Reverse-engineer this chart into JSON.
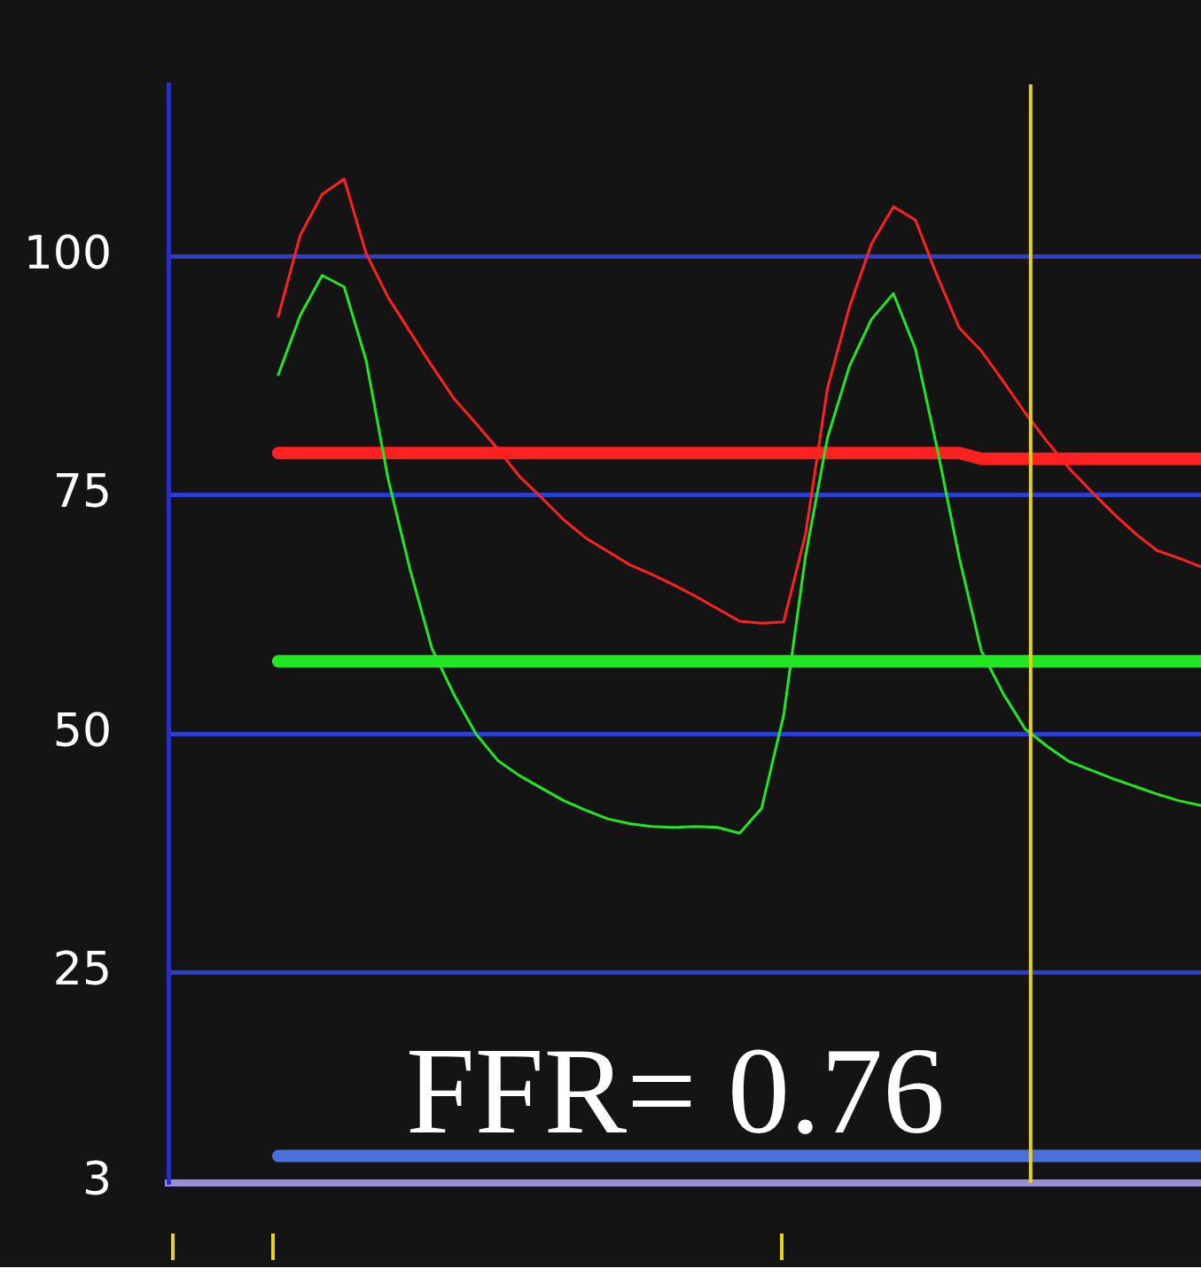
{
  "chart_data": {
    "type": "line",
    "categories": [
      null,
      null,
      null,
      null,
      null,
      null,
      null,
      null,
      null,
      null,
      null,
      null,
      null,
      null,
      null,
      null,
      null,
      null,
      null,
      null,
      null,
      null,
      null,
      null,
      null,
      null,
      null,
      null,
      null,
      null,
      null,
      null,
      null,
      null,
      null,
      null,
      null,
      null,
      null,
      null,
      null,
      null,
      null,
      null,
      null,
      null,
      null,
      null
    ],
    "ylim": [
      3,
      118
    ],
    "yticks": [
      3,
      25,
      50,
      75,
      100
    ],
    "grid": "y",
    "tick_labels": "y",
    "legend": false,
    "marker": "none",
    "annotations": [
      "FFR= 0.76"
    ],
    "ref_lines": [
      {
        "axis": "x",
        "color": "#e6d21e"
      }
    ],
    "series": [
      {
        "color": "#ff2020",
        "values": [
          null,
          null,
          null,
          null,
          null,
          93.7,
          102.2,
          106.5,
          108.1,
          100.3,
          95.7,
          92.1,
          88.5,
          85.1,
          82.5,
          79.8,
          76.9,
          74.7,
          72.4,
          70.5,
          69.1,
          67.7,
          66.7,
          65.6,
          64.4,
          63.1,
          61.8,
          61.6,
          61.7,
          70.9,
          86.2,
          94.7,
          101.3,
          105.2,
          103.8,
          97.9,
          92.5,
          90.1,
          86.9,
          83.6,
          80.6,
          77.8,
          75.4,
          73.1,
          71.0,
          69.2,
          68.4,
          67.5
        ]
      },
      {
        "color": "#22e622",
        "values": [
          null,
          null,
          null,
          null,
          null,
          87.6,
          93.8,
          98.0,
          96.8,
          89.1,
          76.7,
          67.2,
          58.9,
          54.1,
          50.0,
          47.2,
          45.6,
          44.3,
          43.0,
          42.0,
          41.1,
          40.6,
          40.3,
          40.2,
          40.3,
          40.2,
          39.6,
          42.2,
          51.9,
          68.6,
          81.0,
          88.5,
          93.4,
          96.1,
          90.3,
          79.8,
          68.4,
          58.7,
          54.2,
          50.5,
          48.7,
          47.1,
          46.2,
          45.3,
          44.5,
          43.7,
          43.0,
          42.5
        ]
      },
      {
        "color": "#ff2020",
        "values": [
          null,
          null,
          null,
          null,
          null,
          79.4,
          79.4,
          79.4,
          79.4,
          79.4,
          79.4,
          79.4,
          79.4,
          79.4,
          79.4,
          79.4,
          79.4,
          79.4,
          79.4,
          79.4,
          79.4,
          79.4,
          79.4,
          79.4,
          79.4,
          79.4,
          79.4,
          79.4,
          79.4,
          79.4,
          79.4,
          79.4,
          79.4,
          79.4,
          79.4,
          79.4,
          79.4,
          78.8,
          78.8,
          78.8,
          78.8,
          78.8,
          78.8,
          78.8,
          78.8,
          78.8,
          78.8,
          78.8
        ]
      },
      {
        "color": "#22e622",
        "values": [
          null,
          null,
          null,
          null,
          null,
          57.6,
          57.6,
          57.6,
          57.6,
          57.6,
          57.6,
          57.6,
          57.6,
          57.6,
          57.6,
          57.6,
          57.6,
          57.6,
          57.6,
          57.6,
          57.6,
          57.6,
          57.6,
          57.6,
          57.6,
          57.6,
          57.6,
          57.6,
          57.6,
          57.6,
          57.6,
          57.6,
          57.6,
          57.6,
          57.6,
          57.6,
          57.6,
          57.6,
          57.6,
          57.6,
          57.6,
          57.6,
          57.6,
          57.6,
          57.6,
          57.6,
          57.6,
          57.6
        ]
      },
      {
        "color": "#4a6fd8",
        "values": [
          null,
          null,
          null,
          null,
          null,
          5.8,
          5.8,
          5.8,
          5.8,
          5.8,
          5.8,
          5.8,
          5.8,
          5.8,
          5.8,
          5.8,
          5.8,
          5.8,
          5.8,
          5.8,
          5.8,
          5.8,
          5.8,
          5.8,
          5.8,
          5.8,
          5.8,
          5.8,
          5.8,
          5.8,
          5.8,
          5.8,
          5.8,
          5.8,
          5.8,
          5.8,
          5.8,
          5.8,
          5.8,
          5.8,
          5.8,
          5.8,
          5.8,
          5.8,
          5.8,
          5.8,
          5.8,
          5.8
        ]
      }
    ]
  }
}
